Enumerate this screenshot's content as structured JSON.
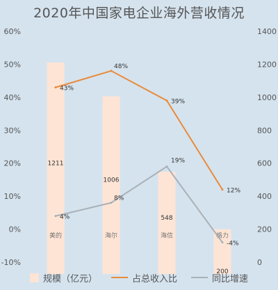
{
  "title": "2020年中国家电企业海外营收情况",
  "colors": {
    "background": "#d5e3ee",
    "bar": "#fde4d5",
    "share_line": "#e98a3b",
    "growth_line": "#a9b0b7",
    "text": "#555555"
  },
  "chart_data": {
    "type": "bar",
    "title": "2020年中国家电企业海外营收情况",
    "categories": [
      "美的",
      "海尔",
      "海信",
      "格力"
    ],
    "y_left": {
      "ticks": [
        "-10%",
        "0%",
        "10%",
        "20%",
        "30%",
        "40%",
        "50%",
        "60%"
      ],
      "range": [
        -10,
        60
      ]
    },
    "y_right": {
      "ticks": [
        "0",
        "200",
        "400",
        "600",
        "800",
        "1000",
        "1200",
        "1400"
      ],
      "range": [
        0,
        1400
      ]
    },
    "grid": false,
    "legend_position": "bottom",
    "series": [
      {
        "name": "规模（亿元）",
        "type": "bar",
        "axis": "right",
        "values": [
          1211,
          1006,
          548,
          200
        ],
        "labels": [
          "1211",
          "1006",
          "548",
          "200"
        ]
      },
      {
        "name": "占总收入比",
        "type": "line",
        "axis": "left",
        "values": [
          43,
          48,
          39,
          12
        ],
        "labels": [
          "43%",
          "48%",
          "39%",
          "12%"
        ]
      },
      {
        "name": "同比增速",
        "type": "line",
        "axis": "left",
        "values": [
          4,
          8,
          19,
          -4
        ],
        "labels": [
          "4%",
          "8%",
          "19%",
          "-4%"
        ]
      }
    ]
  }
}
